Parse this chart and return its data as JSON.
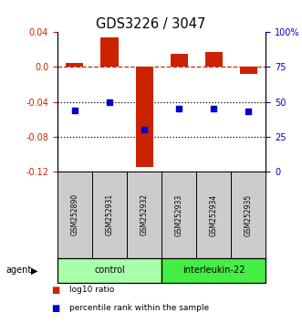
{
  "title": "GDS3226 / 3047",
  "samples": [
    "GSM252890",
    "GSM252931",
    "GSM252932",
    "GSM252933",
    "GSM252934",
    "GSM252935"
  ],
  "log10_ratio": [
    0.005,
    0.034,
    -0.115,
    0.015,
    0.017,
    -0.008
  ],
  "percentile_rank": [
    44,
    50,
    30,
    45,
    45,
    43
  ],
  "left_ylim": [
    -0.12,
    0.04
  ],
  "left_yticks": [
    -0.12,
    -0.08,
    -0.04,
    0.0,
    0.04
  ],
  "right_ylim": [
    0,
    100
  ],
  "right_yticks": [
    0,
    25,
    50,
    75,
    100
  ],
  "right_yticklabels": [
    "0",
    "25",
    "50",
    "75",
    "100%"
  ],
  "bar_color": "#cc2200",
  "dot_color": "#0000cc",
  "dashed_line_color": "#cc2200",
  "dotted_line_color": "#000000",
  "group_labels": [
    "control",
    "interleukin-22"
  ],
  "group_ranges": [
    [
      0,
      3
    ],
    [
      3,
      6
    ]
  ],
  "group_colors": [
    "#aaffaa",
    "#44ee44"
  ],
  "agent_label": "agent",
  "legend_bar_label": "log10 ratio",
  "legend_dot_label": "percentile rank within the sample",
  "bg_color": "#ffffff",
  "plot_bg_color": "#ffffff",
  "tick_label_color_left": "#cc2200",
  "tick_label_color_right": "#0000cc",
  "bar_width": 0.5
}
